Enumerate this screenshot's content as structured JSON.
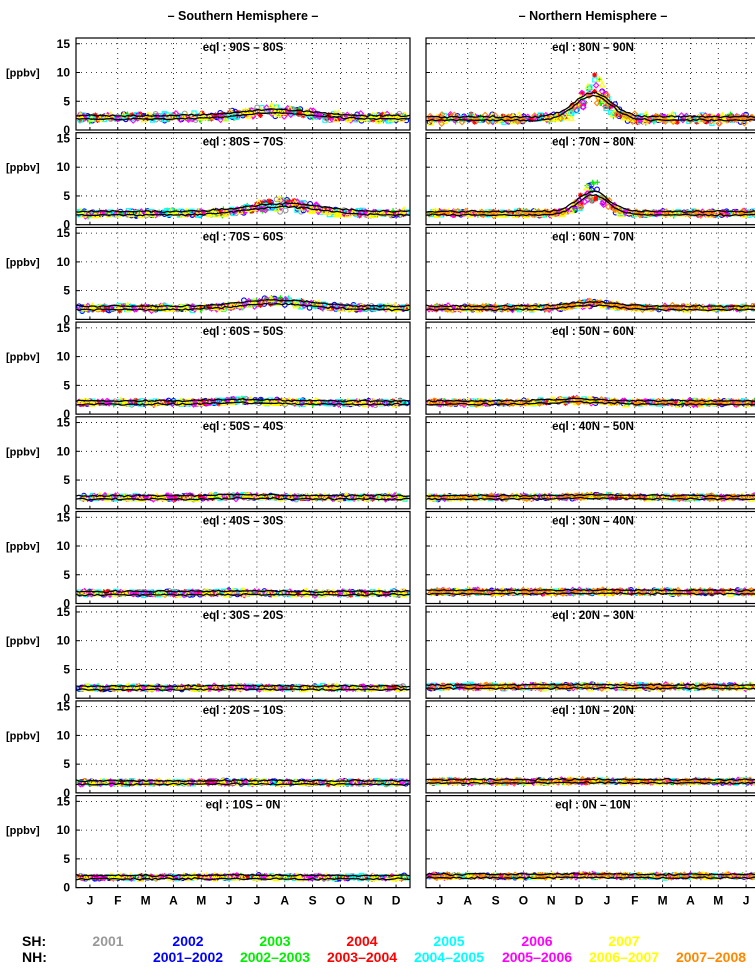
{
  "chart_data": {
    "type": "scatter",
    "columns": [
      {
        "header": "– Southern Hemisphere –",
        "month_ticks": [
          "J",
          "F",
          "M",
          "A",
          "M",
          "J",
          "J",
          "A",
          "S",
          "O",
          "N",
          "D"
        ]
      },
      {
        "header": "– Northern Hemisphere –",
        "month_ticks": [
          "J",
          "A",
          "S",
          "O",
          "N",
          "D",
          "J",
          "F",
          "M",
          "A",
          "M",
          "J"
        ]
      }
    ],
    "ylabel": "[ppbv]",
    "yticks": [
      0,
      5,
      10,
      15
    ],
    "ylim": [
      0,
      16
    ],
    "grid": true,
    "panels": [
      {
        "row": 0,
        "col": 0,
        "title": "eql : 90S – 80S",
        "baseline": 2.2,
        "spread": 0.9,
        "bump": {
          "center": 0.6,
          "width": 0.12,
          "height": 1.5
        }
      },
      {
        "row": 0,
        "col": 1,
        "title": "eql : 80N – 90N",
        "baseline": 2.0,
        "spread": 1.0,
        "bump": {
          "center": 0.5,
          "width": 0.06,
          "height": 6
        }
      },
      {
        "row": 1,
        "col": 0,
        "title": "eql : 80S – 70S",
        "baseline": 2.0,
        "spread": 0.7,
        "bump": {
          "center": 0.62,
          "width": 0.12,
          "height": 2
        }
      },
      {
        "row": 1,
        "col": 1,
        "title": "eql : 70N – 80N",
        "baseline": 2.0,
        "spread": 0.6,
        "bump": {
          "center": 0.5,
          "width": 0.05,
          "height": 5
        }
      },
      {
        "row": 2,
        "col": 0,
        "title": "eql : 70S – 60S",
        "baseline": 2.0,
        "spread": 0.6,
        "bump": {
          "center": 0.6,
          "width": 0.12,
          "height": 1.5
        }
      },
      {
        "row": 2,
        "col": 1,
        "title": "eql : 60N – 70N",
        "baseline": 2.0,
        "spread": 0.5,
        "bump": {
          "center": 0.5,
          "width": 0.08,
          "height": 1
        }
      },
      {
        "row": 3,
        "col": 0,
        "title": "eql : 60S – 50S",
        "baseline": 2.0,
        "spread": 0.5,
        "bump": {
          "center": 0.5,
          "width": 0.1,
          "height": 0.4
        }
      },
      {
        "row": 3,
        "col": 1,
        "title": "eql : 50N – 60N",
        "baseline": 2.0,
        "spread": 0.5,
        "bump": {
          "center": 0.45,
          "width": 0.1,
          "height": 0.5
        }
      },
      {
        "row": 4,
        "col": 0,
        "title": "eql : 50S – 40S",
        "baseline": 2.0,
        "spread": 0.5,
        "bump": {
          "center": 0.5,
          "width": 0.1,
          "height": 0.2
        }
      },
      {
        "row": 4,
        "col": 1,
        "title": "eql : 40N – 50N",
        "baseline": 2.0,
        "spread": 0.4,
        "bump": {
          "center": 0.5,
          "width": 0.1,
          "height": 0.2
        }
      },
      {
        "row": 5,
        "col": 0,
        "title": "eql : 40S – 30S",
        "baseline": 1.8,
        "spread": 0.5,
        "bump": {
          "center": 0.5,
          "width": 0.1,
          "height": 0.1
        }
      },
      {
        "row": 5,
        "col": 1,
        "title": "eql : 30N – 40N",
        "baseline": 2.0,
        "spread": 0.5,
        "bump": {
          "center": 0.5,
          "width": 0.1,
          "height": 0.1
        }
      },
      {
        "row": 6,
        "col": 0,
        "title": "eql : 30S – 20S",
        "baseline": 1.8,
        "spread": 0.4,
        "bump": {
          "center": 0.5,
          "width": 0.1,
          "height": 0.1
        }
      },
      {
        "row": 6,
        "col": 1,
        "title": "eql : 20N – 30N",
        "baseline": 2.0,
        "spread": 0.5,
        "bump": {
          "center": 0.5,
          "width": 0.1,
          "height": 0.1
        }
      },
      {
        "row": 7,
        "col": 0,
        "title": "eql : 20S – 10S",
        "baseline": 1.8,
        "spread": 0.4,
        "bump": {
          "center": 0.5,
          "width": 0.1,
          "height": 0.1
        }
      },
      {
        "row": 7,
        "col": 1,
        "title": "eql : 10N – 20N",
        "baseline": 2.0,
        "spread": 0.4,
        "bump": {
          "center": 0.5,
          "width": 0.1,
          "height": 0.1
        }
      },
      {
        "row": 8,
        "col": 0,
        "title": "eql : 10S – 0N",
        "baseline": 1.8,
        "spread": 0.4,
        "bump": {
          "center": 0.5,
          "width": 0.1,
          "height": 0.1
        }
      },
      {
        "row": 8,
        "col": 1,
        "title": "eql : 0N – 10N",
        "baseline": 2.0,
        "spread": 0.4,
        "bump": {
          "center": 0.5,
          "width": 0.1,
          "height": 0.1
        }
      }
    ],
    "series_sh": [
      {
        "name": "2001",
        "color": "#999999",
        "marker": "circle"
      },
      {
        "name": "2002",
        "color": "#0000ff",
        "marker": "circle"
      },
      {
        "name": "2003",
        "color": "#00ee00",
        "marker": "plus"
      },
      {
        "name": "2004",
        "color": "#ff0000",
        "marker": "star"
      },
      {
        "name": "2005",
        "color": "#00ffff",
        "marker": "square"
      },
      {
        "name": "2006",
        "color": "#ff00ff",
        "marker": "diamond"
      },
      {
        "name": "2007",
        "color": "#ffff00",
        "marker": "triangle"
      }
    ],
    "series_nh": [
      {
        "name": "2001–2002",
        "color": "#0000ff",
        "marker": "circle"
      },
      {
        "name": "2002–2003",
        "color": "#00ee00",
        "marker": "plus"
      },
      {
        "name": "2003–2004",
        "color": "#ff0000",
        "marker": "star"
      },
      {
        "name": "2004–2005",
        "color": "#00ffff",
        "marker": "square"
      },
      {
        "name": "2005–2006",
        "color": "#ff00ff",
        "marker": "diamond"
      },
      {
        "name": "2006–2007",
        "color": "#ffff00",
        "marker": "triangle"
      },
      {
        "name": "2007–2008",
        "color": "#ff8800",
        "marker": "diamond"
      }
    ],
    "climatology_line_color": "#000000"
  },
  "legend": {
    "sh_key": "SH:",
    "nh_key": "NH:"
  }
}
